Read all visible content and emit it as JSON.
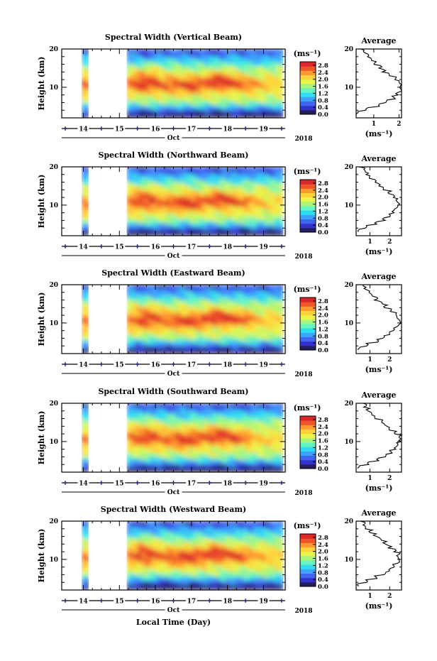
{
  "chart_data": {
    "type": "heatmap",
    "panels": [
      {
        "title": "Spectral Width (Vertical Beam)",
        "profile_ticks": [
          "1",
          "2"
        ],
        "profile_xlim": [
          0.3,
          2.1
        ],
        "avg_profile": [
          [
            0.35,
            3
          ],
          [
            0.7,
            4
          ],
          [
            1.2,
            5
          ],
          [
            1.55,
            6
          ],
          [
            1.8,
            7
          ],
          [
            1.95,
            8
          ],
          [
            2.05,
            9
          ],
          [
            2.08,
            10
          ],
          [
            2.0,
            11
          ],
          [
            1.85,
            12
          ],
          [
            1.6,
            13
          ],
          [
            1.4,
            14
          ],
          [
            1.25,
            15
          ],
          [
            1.05,
            16
          ],
          [
            0.9,
            17
          ],
          [
            0.75,
            18
          ],
          [
            0.6,
            19
          ],
          [
            0.45,
            20
          ]
        ]
      },
      {
        "title": "Spectral Width (Northward Beam)",
        "profile_ticks": [
          "1",
          "2"
        ],
        "profile_xlim": [
          0.3,
          2.6
        ],
        "avg_profile": [
          [
            0.4,
            3
          ],
          [
            0.8,
            4
          ],
          [
            1.3,
            5
          ],
          [
            1.7,
            6
          ],
          [
            2.0,
            7
          ],
          [
            2.2,
            8
          ],
          [
            2.35,
            9
          ],
          [
            2.45,
            10
          ],
          [
            2.4,
            11
          ],
          [
            2.25,
            12
          ],
          [
            2.0,
            13
          ],
          [
            1.75,
            14
          ],
          [
            1.5,
            15
          ],
          [
            1.25,
            16
          ],
          [
            1.05,
            17
          ],
          [
            0.85,
            18
          ],
          [
            0.7,
            19
          ],
          [
            0.55,
            20
          ]
        ]
      },
      {
        "title": "Spectral Width (Eastward Beam)",
        "profile_ticks": [
          "1",
          "2"
        ],
        "profile_xlim": [
          0.3,
          2.6
        ],
        "avg_profile": [
          [
            0.4,
            3
          ],
          [
            0.85,
            4
          ],
          [
            1.35,
            5
          ],
          [
            1.75,
            6
          ],
          [
            2.05,
            7
          ],
          [
            2.25,
            8
          ],
          [
            2.4,
            9
          ],
          [
            2.5,
            10
          ],
          [
            2.45,
            11
          ],
          [
            2.3,
            12
          ],
          [
            2.05,
            13
          ],
          [
            1.8,
            14
          ],
          [
            1.55,
            15
          ],
          [
            1.3,
            16
          ],
          [
            1.1,
            17
          ],
          [
            0.9,
            18
          ],
          [
            0.75,
            19
          ],
          [
            0.6,
            20
          ]
        ]
      },
      {
        "title": "Spectral Width (Southward Beam)",
        "profile_ticks": [
          "1",
          "2"
        ],
        "profile_xlim": [
          0.3,
          2.6
        ],
        "avg_profile": [
          [
            0.4,
            3
          ],
          [
            0.85,
            4
          ],
          [
            1.35,
            5
          ],
          [
            1.8,
            6
          ],
          [
            2.1,
            7
          ],
          [
            2.3,
            8
          ],
          [
            2.45,
            9
          ],
          [
            2.55,
            10
          ],
          [
            2.5,
            11
          ],
          [
            2.3,
            12
          ],
          [
            2.05,
            13
          ],
          [
            1.8,
            14
          ],
          [
            1.55,
            15
          ],
          [
            1.3,
            16
          ],
          [
            1.1,
            17
          ],
          [
            0.9,
            18
          ],
          [
            0.75,
            19
          ],
          [
            0.6,
            20
          ]
        ]
      },
      {
        "title": "Spectral Width (Westward Beam)",
        "profile_ticks": [
          "1",
          "2"
        ],
        "profile_xlim": [
          0.3,
          2.6
        ],
        "avg_profile": [
          [
            0.4,
            3
          ],
          [
            0.8,
            4
          ],
          [
            1.3,
            5
          ],
          [
            1.75,
            6
          ],
          [
            2.05,
            7
          ],
          [
            2.25,
            8
          ],
          [
            2.4,
            9
          ],
          [
            2.5,
            10
          ],
          [
            2.45,
            11
          ],
          [
            2.25,
            12
          ],
          [
            2.0,
            13
          ],
          [
            1.75,
            14
          ],
          [
            1.5,
            15
          ],
          [
            1.25,
            16
          ],
          [
            1.05,
            17
          ],
          [
            0.85,
            18
          ],
          [
            0.7,
            19
          ],
          [
            0.55,
            20
          ]
        ]
      }
    ],
    "ylabel": "Height (km)",
    "yticks": [
      "10",
      "20"
    ],
    "ylim": [
      2,
      20
    ],
    "xlabel": "Local Time (Day)",
    "xticks": [
      "14",
      "15",
      "16",
      "17",
      "18",
      "19"
    ],
    "xlim": [
      13.4,
      19.6
    ],
    "month_label": "Oct",
    "year_label": "2018",
    "data_present": [
      [
        13.95,
        14.15
      ],
      [
        15.2,
        19.55
      ]
    ],
    "colorbar": {
      "unit_label": "(ms⁻¹)",
      "ticks": [
        "0.0",
        "0.4",
        "0.8",
        "1.2",
        "1.6",
        "2.0",
        "2.4",
        "2.8"
      ],
      "range": [
        0.0,
        3.0
      ],
      "colors": [
        "#231f5e",
        "#3333cc",
        "#3f66f0",
        "#3da3ff",
        "#2fdcf2",
        "#66f5c0",
        "#a8f57a",
        "#e9f54d",
        "#ffd23a",
        "#ff9a2e",
        "#f0552a",
        "#d9262a"
      ]
    },
    "profile_title": "Average",
    "profile_xlabel": "(ms⁻¹)"
  }
}
